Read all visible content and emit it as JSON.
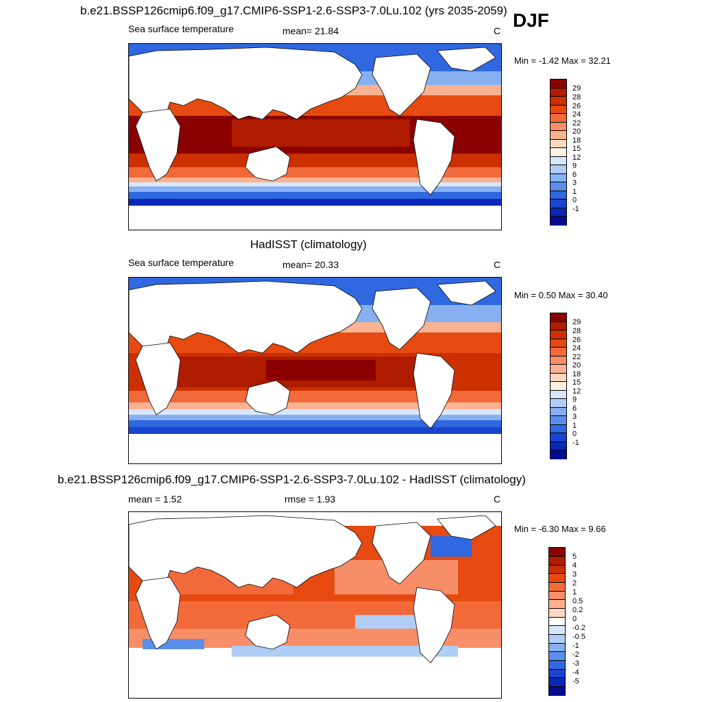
{
  "season": "DJF",
  "panels": [
    {
      "title": "b.e21.BSSP126cmip6.f09_g17.CMIP6-SSP1-2.6-SSP3-7.0Lu.102 (yrs 2035-2059)",
      "left_label": "Sea surface temperature",
      "mid_label": "mean=  21.84",
      "units": "C",
      "minmax": "Min =  -1.42 Max =  32.21",
      "colorbar_labels": [
        "29",
        "28",
        "26",
        "24",
        "22",
        "20",
        "18",
        "15",
        "12",
        "9",
        "6",
        "3",
        "1",
        "0",
        "-1"
      ]
    },
    {
      "title": "HadISST (climatology)",
      "left_label": "Sea surface temperature",
      "mid_label": "mean=  20.33",
      "units": "C",
      "minmax": "Min =   0.50 Max =  30.40",
      "colorbar_labels": [
        "29",
        "28",
        "26",
        "24",
        "22",
        "20",
        "18",
        "15",
        "12",
        "9",
        "6",
        "3",
        "1",
        "0",
        "-1"
      ]
    },
    {
      "title": "b.e21.BSSP126cmip6.f09_g17.CMIP6-SSP1-2.6-SSP3-7.0Lu.102 - HadISST (climatology)",
      "left_label": "mean =   1.52",
      "mid_label": "rmse =   1.93",
      "units": "C",
      "minmax": "Min =  -6.30 Max =   9.66",
      "colorbar_labels": [
        "5",
        "4",
        "3",
        "2",
        "1",
        "0.5",
        "0.2",
        "0",
        "-0.2",
        "-0.5",
        "-1",
        "-2",
        "-3",
        "-4",
        "-5"
      ]
    }
  ],
  "colors": {
    "sst_scale": [
      "#8b0000",
      "#b01c00",
      "#cc3000",
      "#e64a10",
      "#f26a3a",
      "#f88e68",
      "#fbb292",
      "#fdd8c0",
      "#fff0e0",
      "#d6e6fb",
      "#b0cdf6",
      "#86b0f0",
      "#5a8eea",
      "#2f68e0",
      "#1a44d0",
      "#0a28b8",
      "#050a90"
    ],
    "diff_scale": [
      "#8b0000",
      "#b01c00",
      "#cc3000",
      "#e64a10",
      "#f26a3a",
      "#f88e68",
      "#fbb292",
      "#fdd8c0",
      "#ffffff",
      "#d6e6fb",
      "#b0cdf6",
      "#86b0f0",
      "#5a8eea",
      "#2f68e0",
      "#1a44d0",
      "#0a28b8",
      "#050a90"
    ]
  }
}
